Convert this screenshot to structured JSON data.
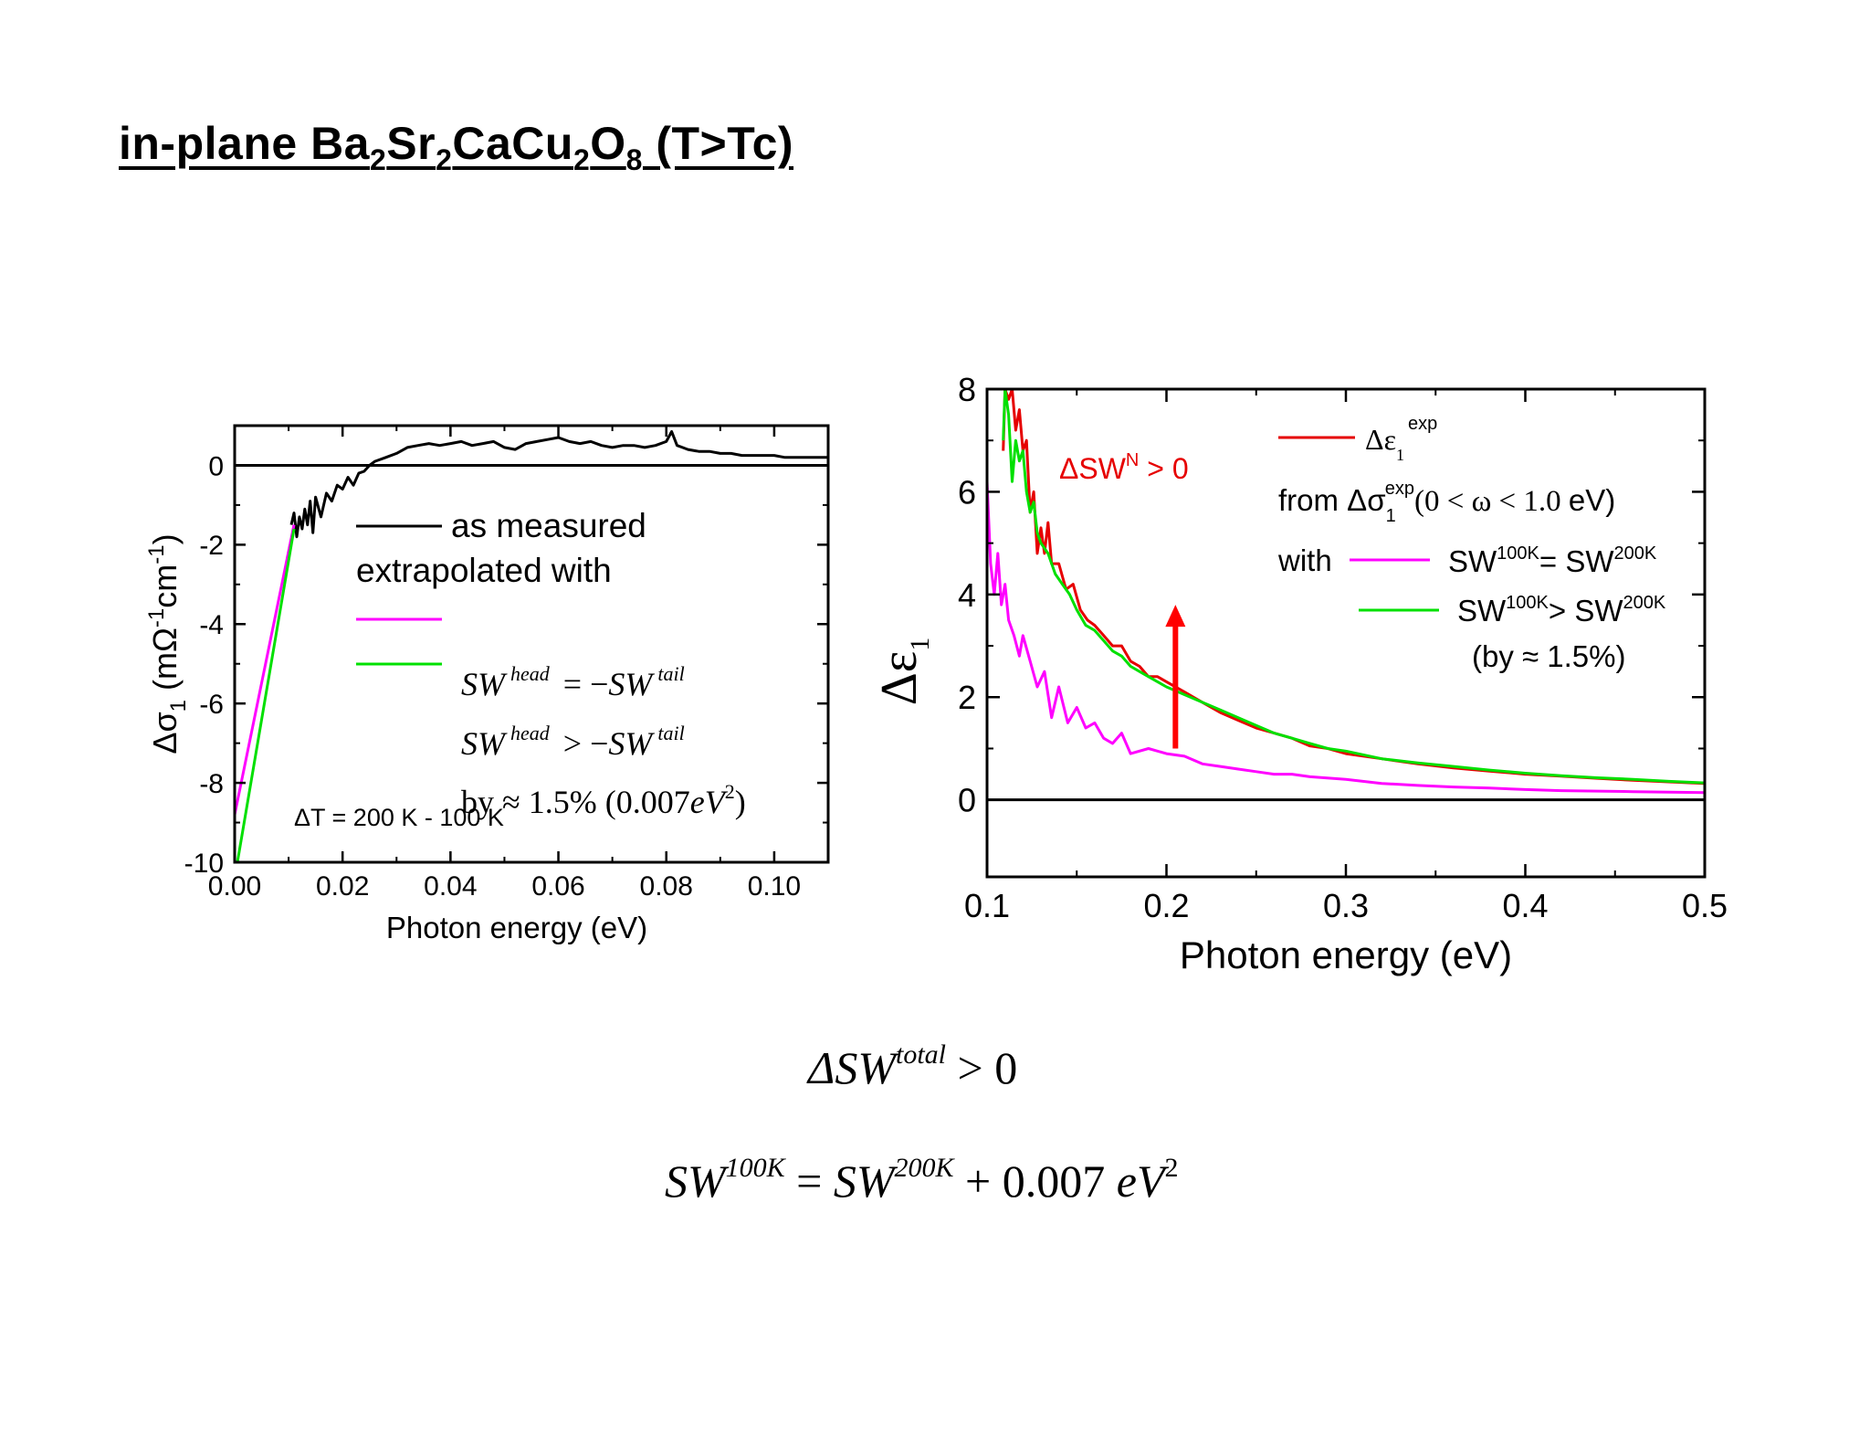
{
  "title": {
    "prefix": "in-plane Ba",
    "sub1": "2",
    "t2": "Sr",
    "sub2": "2",
    "t3": "CaCu",
    "sub3": "2",
    "t4": "O",
    "sub4": "8",
    "suffix": " (T>Tc)"
  },
  "equations": {
    "delta_sw_total": {
      "lhs": "ΔSW",
      "sup": "total",
      "rhs": " > 0"
    },
    "sw_relation": {
      "a": "SW",
      "a_sup": "100K",
      "eq": " = ",
      "b": "SW",
      "b_sup": "200K",
      "plus": " + 0.007 ",
      "c": "eV",
      "c_sup": "2"
    }
  },
  "colors": {
    "measured": "#000000",
    "magenta": "#ff00ff",
    "green": "#00e000",
    "red": "#e60000",
    "arrow": "#ff0000"
  },
  "chart_data": [
    {
      "type": "line",
      "title": "",
      "xlabel": "Photon energy (eV)",
      "ylabel": {
        "main": "Δσ",
        "sub": "1",
        "unit": " (mΩ",
        "sup1": "-1",
        "mid": "cm",
        "sup2": "-1",
        "end": ")"
      },
      "xlim": [
        0.0,
        0.11
      ],
      "ylim": [
        -10,
        1
      ],
      "xticks": [
        {
          "v": 0.0,
          "label": "0.00"
        },
        {
          "v": 0.02,
          "label": "0.02"
        },
        {
          "v": 0.04,
          "label": "0.04"
        },
        {
          "v": 0.06,
          "label": "0.06"
        },
        {
          "v": 0.08,
          "label": "0.08"
        },
        {
          "v": 0.1,
          "label": "0.10"
        }
      ],
      "yticks": [
        {
          "v": 0,
          "label": "0"
        },
        {
          "v": -2,
          "label": "-2"
        },
        {
          "v": -4,
          "label": "-4"
        },
        {
          "v": -6,
          "label": "-6"
        },
        {
          "v": -8,
          "label": "-8"
        },
        {
          "v": -10,
          "label": "-10"
        }
      ],
      "series": [
        {
          "name": "as measured",
          "color": "#000000",
          "x": [
            0.0105,
            0.011,
            0.0115,
            0.012,
            0.0125,
            0.013,
            0.0135,
            0.014,
            0.0145,
            0.015,
            0.016,
            0.017,
            0.018,
            0.019,
            0.02,
            0.021,
            0.022,
            0.023,
            0.024,
            0.025,
            0.026,
            0.028,
            0.03,
            0.032,
            0.034,
            0.036,
            0.038,
            0.04,
            0.042,
            0.044,
            0.046,
            0.048,
            0.05,
            0.052,
            0.054,
            0.056,
            0.058,
            0.06,
            0.062,
            0.064,
            0.066,
            0.068,
            0.07,
            0.072,
            0.074,
            0.076,
            0.078,
            0.08,
            0.081,
            0.082,
            0.083,
            0.084,
            0.086,
            0.088,
            0.09,
            0.092,
            0.094,
            0.096,
            0.098,
            0.1,
            0.102,
            0.104,
            0.106,
            0.108,
            0.11
          ],
          "y": [
            -1.5,
            -1.2,
            -1.8,
            -1.3,
            -1.6,
            -1.1,
            -1.5,
            -0.9,
            -1.7,
            -0.8,
            -1.3,
            -0.7,
            -0.9,
            -0.5,
            -0.6,
            -0.3,
            -0.5,
            -0.2,
            -0.15,
            0.0,
            0.1,
            0.2,
            0.3,
            0.45,
            0.5,
            0.55,
            0.5,
            0.55,
            0.6,
            0.5,
            0.55,
            0.6,
            0.45,
            0.4,
            0.55,
            0.6,
            0.65,
            0.7,
            0.6,
            0.55,
            0.6,
            0.5,
            0.45,
            0.5,
            0.5,
            0.45,
            0.5,
            0.6,
            0.85,
            0.5,
            0.45,
            0.4,
            0.35,
            0.35,
            0.3,
            0.3,
            0.25,
            0.25,
            0.25,
            0.25,
            0.2,
            0.2,
            0.2,
            0.2,
            0.2
          ]
        },
        {
          "name": "SW^head = −SW^tail",
          "color": "#ff00ff",
          "x": [
            0.0,
            0.011
          ],
          "y": [
            -8.8,
            -1.5
          ]
        },
        {
          "name": "SW^head > −SW^tail",
          "color": "#00e000",
          "x": [
            0.0005,
            0.011
          ],
          "y": [
            -10.0,
            -1.6
          ]
        }
      ],
      "legend": {
        "measured": "as measured",
        "extrapolated": "extrapolated with",
        "sw": "SW",
        "head": "head",
        "eq1": " = −",
        "tail": "tail",
        "gt": " > −",
        "by": "by ≈ 1.5% (0.007",
        "ev": "eV",
        "two": "2",
        "close": ")"
      },
      "annotation": "ΔT = 200 K - 100 K"
    },
    {
      "type": "line",
      "title": "",
      "xlabel": "Photon energy (eV)",
      "ylabel": {
        "main": "Δε",
        "sub": "1"
      },
      "xlim": [
        0.1,
        0.5
      ],
      "ylim": [
        -1.5,
        8
      ],
      "xticks": [
        {
          "v": 0.1,
          "label": "0.1"
        },
        {
          "v": 0.2,
          "label": "0.2"
        },
        {
          "v": 0.3,
          "label": "0.3"
        },
        {
          "v": 0.4,
          "label": "0.4"
        },
        {
          "v": 0.5,
          "label": "0.5"
        }
      ],
      "yticks": [
        {
          "v": 0,
          "label": "0"
        },
        {
          "v": 2,
          "label": "2"
        },
        {
          "v": 4,
          "label": "4"
        },
        {
          "v": 6,
          "label": "6"
        },
        {
          "v": 8,
          "label": "8"
        }
      ],
      "series": [
        {
          "name": "Δε1 exp",
          "color": "#e60000",
          "x": [
            0.109,
            0.11,
            0.112,
            0.114,
            0.116,
            0.118,
            0.12,
            0.122,
            0.124,
            0.126,
            0.128,
            0.13,
            0.132,
            0.134,
            0.136,
            0.14,
            0.144,
            0.148,
            0.152,
            0.156,
            0.16,
            0.165,
            0.17,
            0.175,
            0.18,
            0.185,
            0.19,
            0.195,
            0.2,
            0.21,
            0.22,
            0.23,
            0.24,
            0.25,
            0.26,
            0.27,
            0.28,
            0.29,
            0.3,
            0.32,
            0.34,
            0.36,
            0.38,
            0.4,
            0.42,
            0.44,
            0.46,
            0.48,
            0.5
          ],
          "y": [
            6.8,
            8.0,
            7.8,
            8.0,
            7.2,
            7.6,
            6.8,
            7.0,
            5.6,
            6.0,
            4.8,
            5.3,
            4.8,
            5.4,
            4.6,
            4.6,
            4.1,
            4.2,
            3.7,
            3.5,
            3.4,
            3.2,
            3.0,
            3.0,
            2.7,
            2.6,
            2.4,
            2.4,
            2.3,
            2.1,
            1.9,
            1.7,
            1.55,
            1.4,
            1.3,
            1.2,
            1.05,
            1.0,
            0.9,
            0.8,
            0.7,
            0.62,
            0.56,
            0.5,
            0.46,
            0.42,
            0.38,
            0.35,
            0.32
          ]
        },
        {
          "name": "SW100K = SW200K",
          "color": "#ff00ff",
          "x": [
            0.1,
            0.102,
            0.104,
            0.106,
            0.108,
            0.11,
            0.112,
            0.115,
            0.118,
            0.12,
            0.124,
            0.128,
            0.132,
            0.136,
            0.14,
            0.145,
            0.15,
            0.155,
            0.16,
            0.165,
            0.17,
            0.175,
            0.18,
            0.19,
            0.2,
            0.21,
            0.22,
            0.23,
            0.24,
            0.25,
            0.26,
            0.27,
            0.28,
            0.3,
            0.32,
            0.34,
            0.36,
            0.38,
            0.4,
            0.42,
            0.44,
            0.46,
            0.48,
            0.5
          ],
          "y": [
            6.2,
            4.6,
            4.0,
            4.8,
            3.8,
            4.2,
            3.5,
            3.2,
            2.8,
            3.2,
            2.7,
            2.2,
            2.5,
            1.6,
            2.2,
            1.5,
            1.8,
            1.4,
            1.5,
            1.2,
            1.1,
            1.3,
            0.9,
            1.0,
            0.9,
            0.85,
            0.7,
            0.65,
            0.6,
            0.55,
            0.5,
            0.5,
            0.45,
            0.4,
            0.32,
            0.28,
            0.25,
            0.23,
            0.2,
            0.18,
            0.17,
            0.16,
            0.15,
            0.14
          ]
        },
        {
          "name": "SW100K > SW200K",
          "color": "#00e000",
          "x": [
            0.109,
            0.11,
            0.112,
            0.114,
            0.116,
            0.118,
            0.12,
            0.122,
            0.124,
            0.126,
            0.128,
            0.13,
            0.134,
            0.138,
            0.142,
            0.146,
            0.15,
            0.155,
            0.16,
            0.165,
            0.17,
            0.175,
            0.18,
            0.185,
            0.19,
            0.195,
            0.2,
            0.21,
            0.22,
            0.23,
            0.24,
            0.25,
            0.26,
            0.27,
            0.28,
            0.29,
            0.3,
            0.32,
            0.34,
            0.36,
            0.38,
            0.4,
            0.42,
            0.44,
            0.46,
            0.48,
            0.5
          ],
          "y": [
            7.0,
            8.0,
            7.5,
            6.2,
            7.0,
            6.6,
            6.8,
            6.0,
            5.6,
            5.8,
            5.2,
            5.0,
            4.8,
            4.4,
            4.2,
            4.0,
            3.7,
            3.4,
            3.3,
            3.1,
            2.9,
            2.8,
            2.6,
            2.5,
            2.4,
            2.3,
            2.2,
            2.05,
            1.9,
            1.75,
            1.6,
            1.45,
            1.3,
            1.2,
            1.1,
            1.0,
            0.95,
            0.8,
            0.72,
            0.65,
            0.58,
            0.52,
            0.47,
            0.43,
            0.4,
            0.36,
            0.33
          ]
        }
      ],
      "legend": {
        "exp": "Δε",
        "exp_sub": "1",
        "exp_sup": "exp",
        "from": "from Δσ",
        "from_sub": "1",
        "from_sup": "exp",
        "range": "(0 < ω < 1.0 ",
        "ev": "eV)",
        "with": "with",
        "sw": "SW",
        "k100": "100K",
        "k200": "200K",
        "eq": "= ",
        "gt": "> ",
        "by": "(by ≈ 1.5%)"
      },
      "annotation": {
        "text": "ΔSW",
        "sup": "N",
        "rest": " > 0",
        "color": "#e60000"
      },
      "arrow": {
        "x": 0.205,
        "y_from": 1.0,
        "y_to": 3.8,
        "color": "#ff0000"
      }
    }
  ]
}
